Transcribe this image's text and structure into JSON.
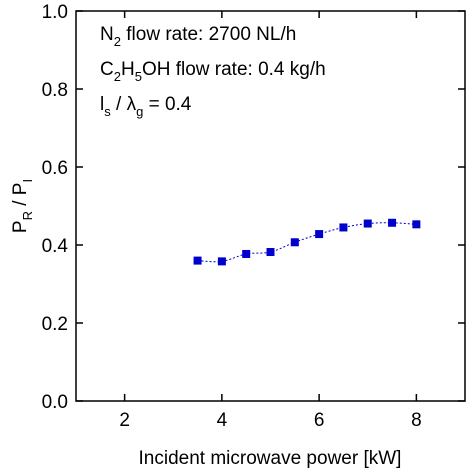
{
  "chart_data": {
    "type": "line",
    "xlabel": "Incident microwave power [kW]",
    "ylabel": {
      "p1": "P",
      "sub1": "R",
      "sep": " / ",
      "p2": "P",
      "sub2": "I"
    },
    "xlim": [
      1,
      9
    ],
    "ylim": [
      0,
      1.0
    ],
    "x_ticks": [
      2,
      4,
      6,
      8
    ],
    "y_ticks": [
      0.0,
      0.2,
      0.4,
      0.6,
      0.8,
      1.0
    ],
    "x_tick_labels": [
      "2",
      "4",
      "6",
      "8"
    ],
    "y_tick_labels": [
      "0.0",
      "0.2",
      "0.4",
      "0.6",
      "0.8",
      "1.0"
    ],
    "grid": false,
    "series": [
      {
        "color": "#0000cc",
        "marker": "square",
        "line_style": "dotted",
        "x": [
          3.5,
          4.0,
          4.5,
          5.0,
          5.5,
          6.0,
          6.5,
          7.0,
          7.5,
          8.0
        ],
        "y": [
          0.36,
          0.358,
          0.377,
          0.382,
          0.407,
          0.428,
          0.445,
          0.455,
          0.457,
          0.453
        ]
      }
    ],
    "annotations": {
      "line1": {
        "a": "N",
        "b": "2",
        "c": " flow rate: 2700 NL/h"
      },
      "line2": {
        "a": "C",
        "b": "2",
        "c": "H",
        "d": "5",
        "e": "OH flow rate: 0.4 kg/h"
      },
      "line3": {
        "a": "l",
        "b": "s",
        "c": " / λ",
        "d": "g",
        "e": " = 0.4"
      }
    }
  }
}
